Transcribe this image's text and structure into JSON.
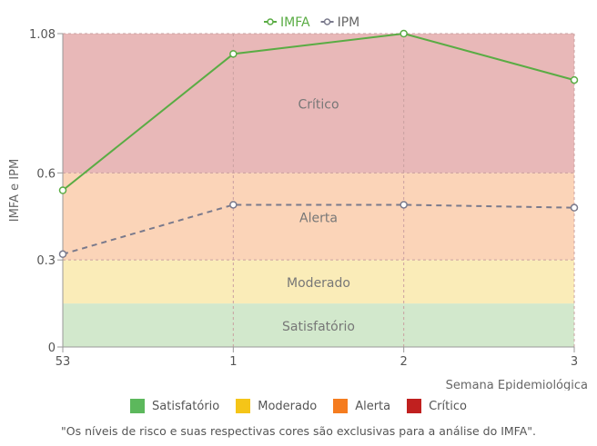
{
  "chart_data": {
    "type": "line",
    "xlabel": "Semana Epidemiológica",
    "ylabel": "IMFA e IPM",
    "categories": [
      "53",
      "1",
      "2",
      "3"
    ],
    "yticks": [
      0,
      0.3,
      0.6,
      1.08
    ],
    "ylim": [
      0,
      1.08
    ],
    "grid": true,
    "legend_position": "top",
    "series": [
      {
        "name": "IMFA",
        "color": "#5aac44",
        "style": "solid",
        "values": [
          0.54,
          1.01,
          1.08,
          0.92
        ]
      },
      {
        "name": "IPM",
        "color": "#7a7a8c",
        "style": "dashed",
        "values": [
          0.32,
          0.49,
          0.49,
          0.48
        ]
      }
    ],
    "bands": [
      {
        "label": "Satisfatório",
        "from": 0,
        "to": 0.15,
        "color": "#d2e8cc"
      },
      {
        "label": "Moderado",
        "from": 0.15,
        "to": 0.3,
        "color": "#faecb8"
      },
      {
        "label": "Alerta",
        "from": 0.3,
        "to": 0.6,
        "color": "#fbd4b8"
      },
      {
        "label": "Crítico",
        "from": 0.6,
        "to": 1.08,
        "color": "#e8b8b8"
      }
    ]
  },
  "risk_legend": [
    {
      "label": "Satisfatório",
      "color": "#5cb85c"
    },
    {
      "label": "Moderado",
      "color": "#f5c518"
    },
    {
      "label": "Alerta",
      "color": "#f57c1f"
    },
    {
      "label": "Crítico",
      "color": "#c0201f"
    }
  ],
  "note": "\"Os níveis de risco e suas respectivas cores são exclusivas para a análise do IMFA\"."
}
